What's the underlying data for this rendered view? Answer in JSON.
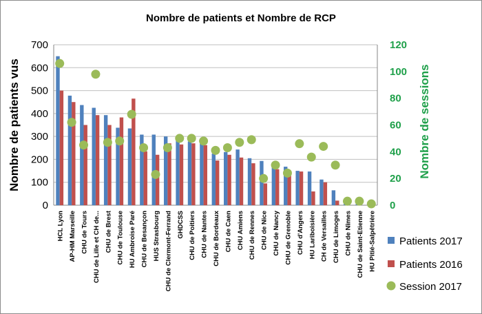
{
  "chart_data": {
    "type": "bar",
    "title": "Nombre de patients et Nombre de RCP",
    "ylabel": "Nombre de patients vus",
    "y2label": "Nombre de sessions",
    "ylim": [
      0,
      700
    ],
    "y2lim": [
      0,
      120
    ],
    "yticks": [
      "0",
      "100",
      "200",
      "300",
      "400",
      "500",
      "600",
      "700"
    ],
    "y2ticks": [
      "0",
      "20",
      "40",
      "60",
      "80",
      "100",
      "120"
    ],
    "grid": true,
    "legend_position": "right",
    "categories": [
      "HCL Lyon",
      "AP-HM Marseille",
      "CHU de Tours",
      "CHU de Lille et CH de...",
      "CHU de Brest",
      "CHU de Toulouse",
      "HU Ambroise Paré",
      "CHU de Besançon",
      "HUS Strasbourg",
      "CHU de Clermont-Ferrand",
      "GHDCSS",
      "CHU de Poitiers",
      "CHU de Nantes",
      "CHU de Bordeaux",
      "CHU de Caen",
      "CHU Amiens",
      "CHU de Rennes",
      "CHU de Nice",
      "CHU de Nancy",
      "CHU de Grenoble",
      "CHU d'Angers",
      "HU Lariboisière",
      "CH de Versailles",
      "CHU de Limoges",
      "CHU de Nîmes",
      "CHU de Saint-Etienne",
      "HU Pitié-Salpêtrière"
    ],
    "series": [
      {
        "name": "Patients 2017",
        "kind": "bar",
        "axis": "left",
        "color": "#4f81bd",
        "values": [
          650,
          478,
          437,
          425,
          393,
          338,
          335,
          308,
          308,
          300,
          283,
          278,
          275,
          225,
          232,
          243,
          205,
          193,
          165,
          168,
          150,
          147,
          112,
          65,
          10,
          5,
          3
        ]
      },
      {
        "name": "Patients 2016",
        "kind": "bar",
        "axis": "left",
        "color": "#c0504d",
        "values": [
          500,
          450,
          350,
          393,
          350,
          383,
          465,
          235,
          220,
          270,
          265,
          270,
          262,
          195,
          220,
          208,
          183,
          95,
          157,
          143,
          147,
          60,
          100,
          20,
          0,
          0,
          0
        ]
      },
      {
        "name": "Session 2017",
        "kind": "scatter",
        "axis": "right",
        "color": "#9bbb59",
        "values": [
          106,
          62,
          45,
          98,
          47,
          48,
          68,
          43,
          23,
          43,
          50,
          50,
          48,
          41,
          43,
          47,
          49,
          20,
          30,
          24,
          46,
          36,
          44,
          30,
          3,
          3,
          1
        ]
      }
    ]
  }
}
